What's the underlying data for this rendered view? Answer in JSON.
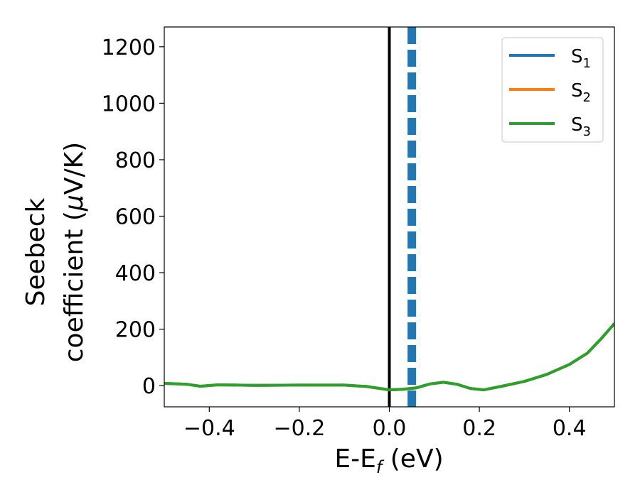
{
  "chart_data": {
    "type": "line",
    "xlabel": "E-E",
    "xlabel_sub": "f",
    "xlabel_unit": " (eV)",
    "ylabel_line1": "Seebeck",
    "ylabel_line2": "coefficient  (",
    "ylabel_mu": "μ",
    "ylabel_unit": "V/K)",
    "xlim": [
      -0.5,
      0.5
    ],
    "ylim": [
      -75,
      1270
    ],
    "xticks": [
      -0.4,
      -0.2,
      0.0,
      0.2,
      0.4
    ],
    "xtick_labels": [
      "−0.4",
      "−0.2",
      "0.0",
      "0.2",
      "0.4"
    ],
    "yticks": [
      0,
      200,
      400,
      600,
      800,
      1000,
      1200
    ],
    "ytick_labels": [
      "0",
      "200",
      "400",
      "600",
      "800",
      "1000",
      "1200"
    ],
    "grid": false,
    "legend_position": "top-right",
    "vlines": [
      {
        "x": 0.0,
        "style": "solid",
        "color": "#000000"
      },
      {
        "x": 0.05,
        "style": "dashed",
        "color": "#1f77b4"
      }
    ],
    "series": [
      {
        "name": "S",
        "sub": "1",
        "color": "#1f77b4",
        "x": [
          -0.5,
          -0.45,
          -0.42,
          -0.38,
          -0.3,
          -0.2,
          -0.1,
          -0.05,
          0.0,
          0.03,
          0.06,
          0.09,
          0.12,
          0.15,
          0.18,
          0.21,
          0.25,
          0.3,
          0.35,
          0.4,
          0.44,
          0.47,
          0.5
        ],
        "y": [
          8,
          5,
          -2,
          3,
          1,
          2,
          2,
          -3,
          -15,
          -13,
          -8,
          6,
          12,
          5,
          -10,
          -15,
          -2,
          15,
          40,
          75,
          115,
          165,
          220
        ]
      },
      {
        "name": "S",
        "sub": "2",
        "color": "#ff7f0e",
        "x": [
          -0.5,
          -0.45,
          -0.42,
          -0.38,
          -0.3,
          -0.2,
          -0.1,
          -0.05,
          0.0,
          0.03,
          0.06,
          0.09,
          0.12,
          0.15,
          0.18,
          0.21,
          0.25,
          0.3,
          0.35,
          0.4,
          0.44,
          0.47,
          0.5
        ],
        "y": [
          8,
          5,
          -2,
          3,
          1,
          2,
          2,
          -3,
          -15,
          -13,
          -8,
          6,
          12,
          5,
          -10,
          -15,
          -2,
          15,
          40,
          75,
          115,
          165,
          220
        ]
      },
      {
        "name": "S",
        "sub": "3",
        "color": "#2ca02c",
        "x": [
          -0.5,
          -0.45,
          -0.42,
          -0.38,
          -0.3,
          -0.2,
          -0.1,
          -0.05,
          0.0,
          0.03,
          0.06,
          0.09,
          0.12,
          0.15,
          0.18,
          0.21,
          0.25,
          0.3,
          0.35,
          0.4,
          0.44,
          0.47,
          0.5
        ],
        "y": [
          8,
          5,
          -2,
          3,
          1,
          2,
          2,
          -3,
          -15,
          -13,
          -8,
          6,
          12,
          5,
          -10,
          -15,
          -2,
          15,
          40,
          75,
          115,
          165,
          220
        ]
      }
    ]
  }
}
